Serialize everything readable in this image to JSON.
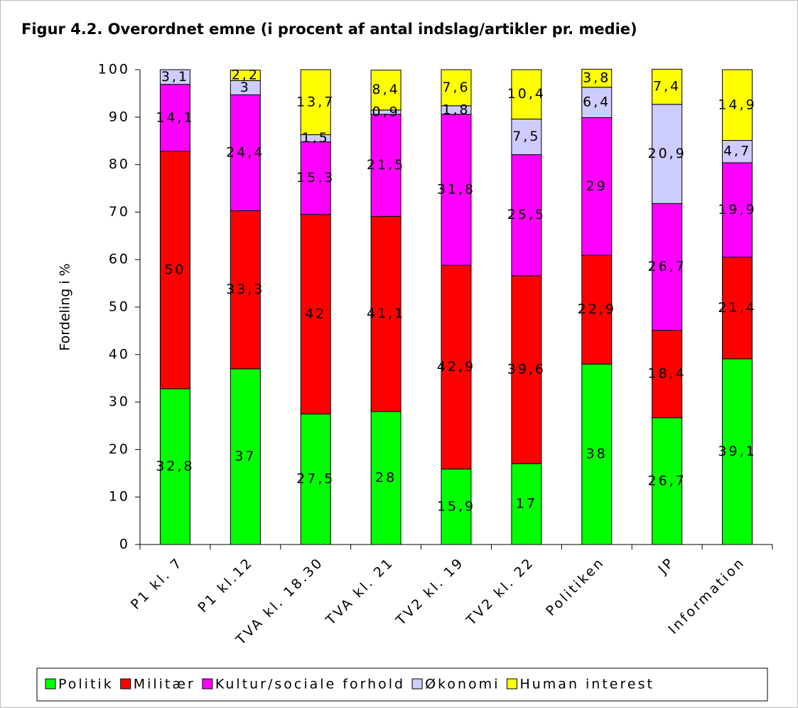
{
  "chart_data": {
    "type": "stacked_bar",
    "title": "Figur 4.2. Overordnet emne (i procent af antal indslag/artikler pr. medie)",
    "y_label": "Fordeling i %",
    "categories": [
      "P1 kl. 7",
      "P1 kl.12",
      "TVA kl. 18.30",
      "TVA kl. 21",
      "TV2 kl. 19",
      "TV2 kl. 22",
      "Politiken",
      "JP",
      "Information"
    ],
    "series": [
      {
        "name": "Politik",
        "color": "#00ff00",
        "values": [
          32.8,
          37,
          27.5,
          28,
          15.9,
          17,
          38,
          26.7,
          39.1
        ],
        "value_labels": [
          "32,8",
          "37",
          "27,5",
          "28",
          "15,9",
          "17",
          "38",
          "26,7",
          "39,1"
        ]
      },
      {
        "name": "Militær",
        "color": "#ff0000",
        "values": [
          50,
          33.3,
          42,
          41.1,
          42.9,
          39.6,
          22.9,
          18.4,
          21.4
        ],
        "value_labels": [
          "50",
          "33,3",
          "42",
          "41,1",
          "42,9",
          "39,6",
          "22,9",
          "18,4",
          "21,4"
        ]
      },
      {
        "name": "Kultur/sociale forhold",
        "color": "#ff00ff",
        "values": [
          14.1,
          24.4,
          15.3,
          21.5,
          31.8,
          25.5,
          29,
          26.7,
          19.9
        ],
        "value_labels": [
          "14,1",
          "24,4",
          "15,3",
          "21,5",
          "31,8",
          "25,5",
          "29",
          "26,7",
          "19,9"
        ]
      },
      {
        "name": "Økonomi",
        "color": "#ccccff",
        "values": [
          3.1,
          3,
          1.5,
          0.9,
          1.8,
          7.5,
          6.4,
          20.9,
          4.7
        ],
        "value_labels": [
          "3,1",
          "3",
          "1,5",
          "0,9",
          "1,8",
          "7,5",
          "6,4",
          "20,9",
          "4,7"
        ]
      },
      {
        "name": "Human interest",
        "color": "#ffff00",
        "values": [
          null,
          2.2,
          13.7,
          8.4,
          7.6,
          10.4,
          3.8,
          7.4,
          14.9
        ],
        "value_labels": [
          null,
          "2,2",
          "13,7",
          "8,4",
          "7,6",
          "10,4",
          "3,8",
          "7,4",
          "14,9"
        ]
      }
    ],
    "ylim": [
      0,
      100
    ],
    "yticks": [
      0,
      10,
      20,
      30,
      40,
      50,
      60,
      70,
      80,
      90,
      100
    ],
    "legend": "bottom"
  }
}
